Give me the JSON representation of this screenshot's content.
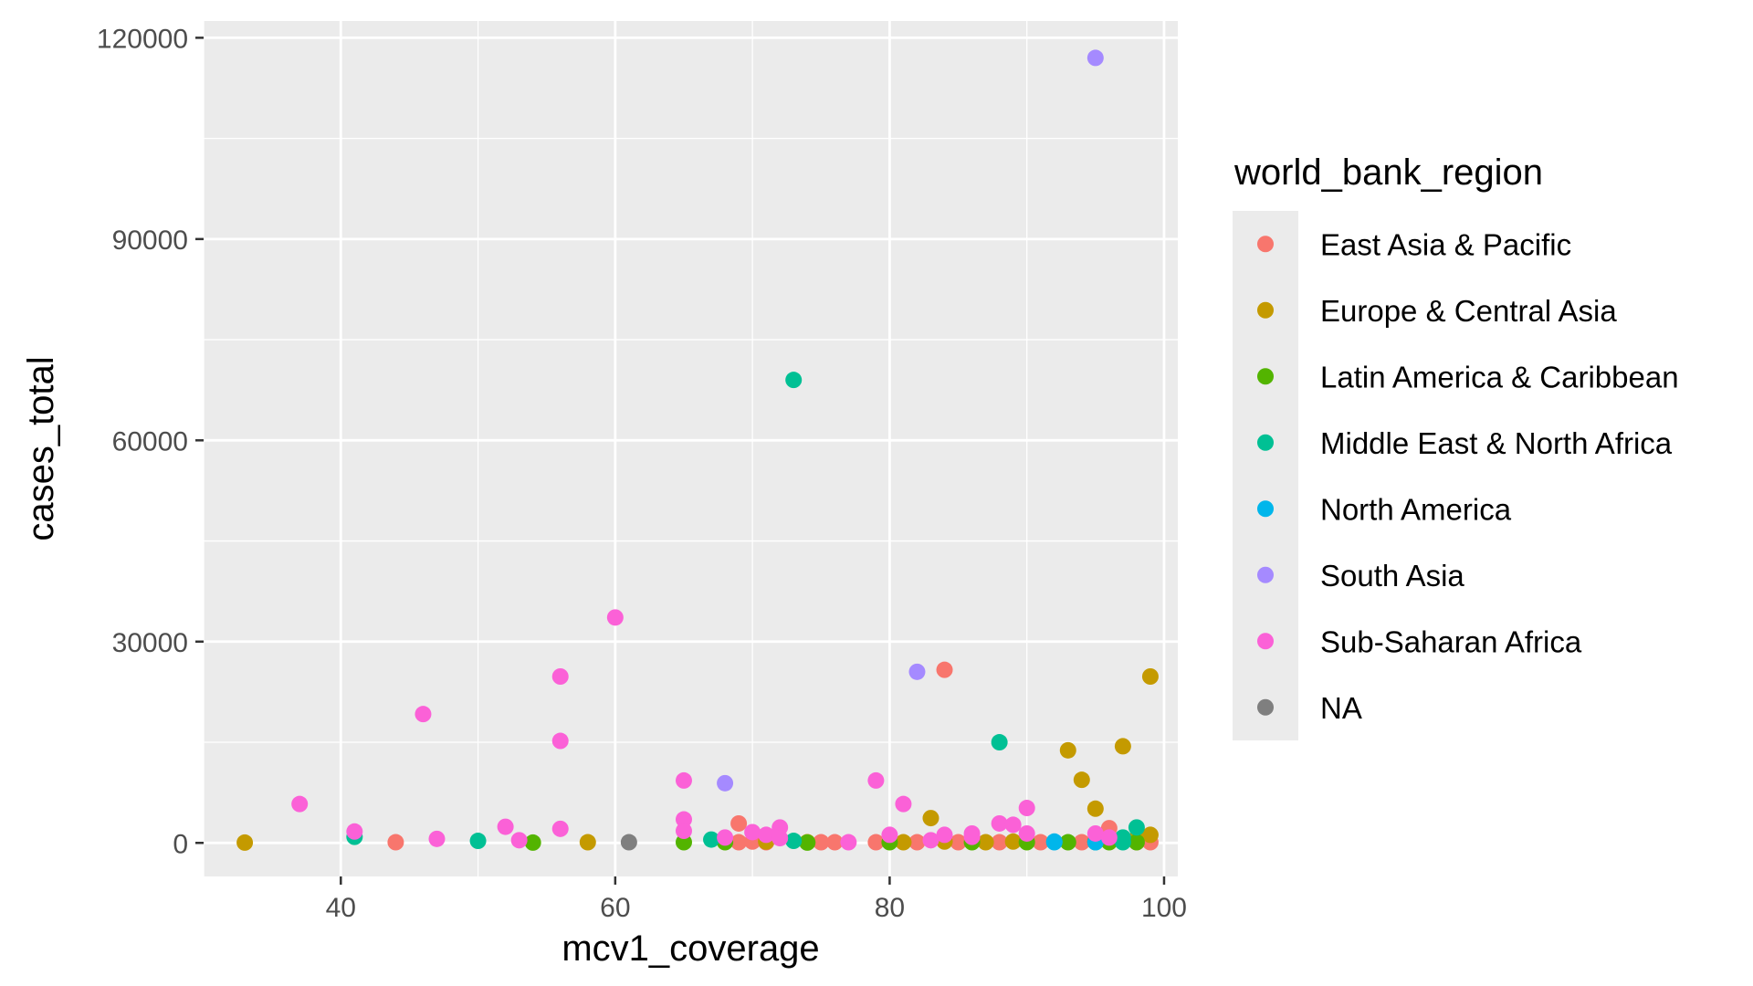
{
  "chart_data": {
    "type": "scatter",
    "xlabel": "mcv1_coverage",
    "ylabel": "cases_total",
    "xlim": [
      30,
      101
    ],
    "ylim": [
      -5000,
      122500
    ],
    "x_ticks": [
      40,
      60,
      80,
      100
    ],
    "x_tick_labels": [
      "40",
      "60",
      "80",
      "100"
    ],
    "y_ticks": [
      0,
      30000,
      60000,
      90000,
      120000
    ],
    "y_tick_labels": [
      "0",
      "30000",
      "60000",
      "90000",
      "120000"
    ],
    "grid": true,
    "legend": {
      "title": "world_bank_region",
      "placement": "right"
    },
    "series": [
      {
        "name": "East Asia & Pacific",
        "color": "#F8766D",
        "points": [
          [
            44,
            100
          ],
          [
            69,
            2900
          ],
          [
            69,
            100
          ],
          [
            70,
            200
          ],
          [
            71,
            100
          ],
          [
            75,
            100
          ],
          [
            76,
            100
          ],
          [
            79,
            100
          ],
          [
            82,
            100
          ],
          [
            84,
            25800
          ],
          [
            85,
            100
          ],
          [
            88,
            100
          ],
          [
            91,
            100
          ],
          [
            94,
            100
          ],
          [
            96,
            2200
          ],
          [
            98,
            100
          ],
          [
            99,
            100
          ]
        ]
      },
      {
        "name": "Europe & Central Asia",
        "color": "#C49A00",
        "points": [
          [
            33,
            50
          ],
          [
            58,
            100
          ],
          [
            71,
            200
          ],
          [
            74,
            100
          ],
          [
            81,
            100
          ],
          [
            83,
            3700
          ],
          [
            84,
            200
          ],
          [
            87,
            100
          ],
          [
            89,
            200
          ],
          [
            93,
            13800
          ],
          [
            94,
            9400
          ],
          [
            95,
            5100
          ],
          [
            96,
            400
          ],
          [
            97,
            14400
          ],
          [
            98,
            700
          ],
          [
            99,
            24800
          ],
          [
            99,
            1200
          ]
        ]
      },
      {
        "name": "Latin America & Caribbean",
        "color": "#53B400",
        "points": [
          [
            54,
            50
          ],
          [
            65,
            100
          ],
          [
            68,
            100
          ],
          [
            74,
            50
          ],
          [
            80,
            100
          ],
          [
            86,
            100
          ],
          [
            90,
            100
          ],
          [
            93,
            100
          ],
          [
            95,
            200
          ],
          [
            96,
            100
          ],
          [
            98,
            100
          ]
        ]
      },
      {
        "name": "Middle East & North Africa",
        "color": "#00C094",
        "points": [
          [
            41,
            900
          ],
          [
            50,
            300
          ],
          [
            67,
            500
          ],
          [
            73,
            69000
          ],
          [
            73,
            300
          ],
          [
            88,
            15000
          ],
          [
            95,
            100
          ],
          [
            97,
            100
          ],
          [
            97,
            800
          ],
          [
            98,
            2300
          ]
        ]
      },
      {
        "name": "North America",
        "color": "#00B6EB",
        "points": [
          [
            92,
            200
          ],
          [
            92,
            100
          ],
          [
            95,
            100
          ]
        ]
      },
      {
        "name": "South Asia",
        "color": "#A58AFF",
        "points": [
          [
            68,
            8900
          ],
          [
            82,
            25500
          ],
          [
            95,
            117000
          ]
        ]
      },
      {
        "name": "Sub-Saharan Africa",
        "color": "#FB61D7",
        "points": [
          [
            37,
            5800
          ],
          [
            41,
            1700
          ],
          [
            46,
            19200
          ],
          [
            47,
            600
          ],
          [
            52,
            2400
          ],
          [
            53,
            400
          ],
          [
            56,
            24800
          ],
          [
            56,
            15200
          ],
          [
            56,
            2100
          ],
          [
            60,
            33600
          ],
          [
            65,
            9300
          ],
          [
            65,
            3500
          ],
          [
            65,
            1800
          ],
          [
            68,
            800
          ],
          [
            70,
            1600
          ],
          [
            71,
            1200
          ],
          [
            72,
            2300
          ],
          [
            72,
            700
          ],
          [
            77,
            100
          ],
          [
            79,
            9300
          ],
          [
            80,
            1200
          ],
          [
            81,
            5800
          ],
          [
            83,
            400
          ],
          [
            84,
            1200
          ],
          [
            86,
            1400
          ],
          [
            86,
            900
          ],
          [
            88,
            2900
          ],
          [
            89,
            2700
          ],
          [
            90,
            5200
          ],
          [
            90,
            1400
          ],
          [
            95,
            1400
          ],
          [
            96,
            800
          ]
        ]
      },
      {
        "name": "NA",
        "color": "#7F7F7F",
        "points": [
          [
            61,
            100
          ]
        ]
      }
    ]
  }
}
